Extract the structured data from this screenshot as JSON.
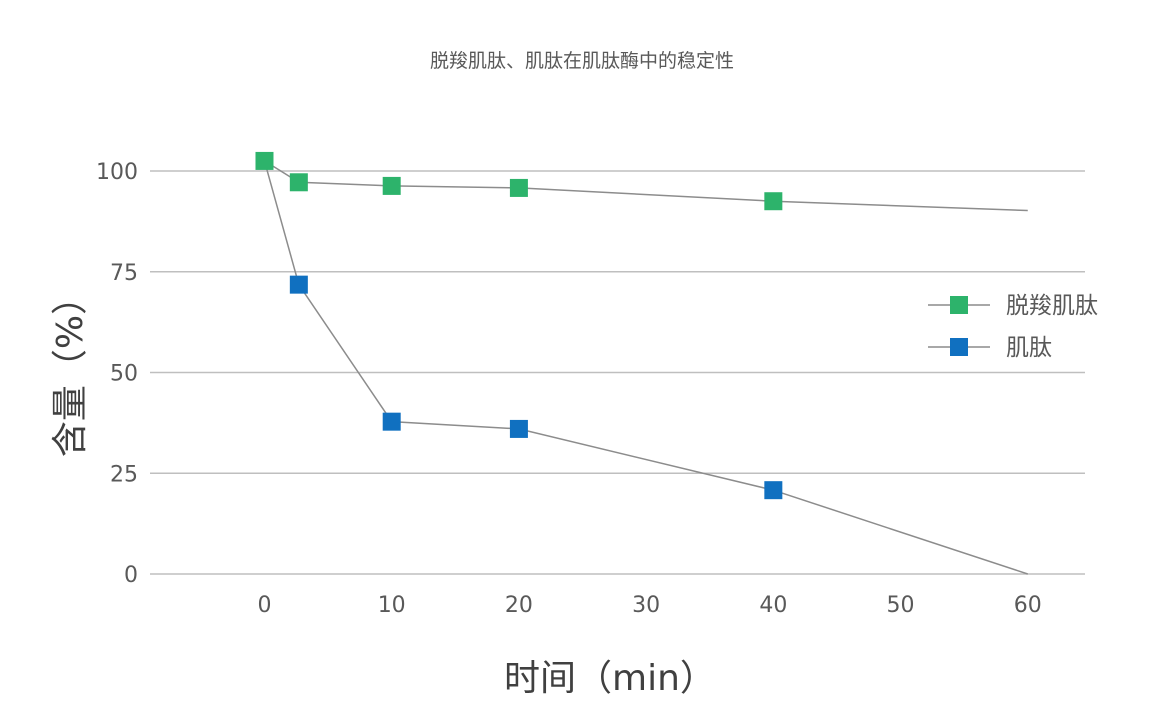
{
  "chart_data": {
    "type": "line",
    "title": "脱羧肌肽、肌肽在肌肽酶中的稳定性",
    "xlabel": "时间（min）",
    "ylabel": "含量（%）",
    "xlim": [
      -9,
      64.5
    ],
    "ylim": [
      0,
      100
    ],
    "x_ticks": [
      "0",
      "10",
      "20",
      "30",
      "40",
      "50",
      "60"
    ],
    "y_ticks": [
      "0",
      "25",
      "50",
      "75",
      "100"
    ],
    "grid": true,
    "legend_position": "right",
    "series": [
      {
        "name": "脱羧肌肽",
        "color": "#2db36b",
        "points": [
          {
            "x": 0,
            "y": 102.5,
            "marker": true
          },
          {
            "x": 2.7,
            "y": 97.2,
            "marker": true
          },
          {
            "x": 10,
            "y": 96.3,
            "marker": true
          },
          {
            "x": 20,
            "y": 95.8,
            "marker": true
          },
          {
            "x": 40,
            "y": 92.5,
            "marker": true
          },
          {
            "x": 60,
            "y": 90.2,
            "marker": false
          }
        ]
      },
      {
        "name": "肌肽",
        "color": "#1070c0",
        "points": [
          {
            "x": 0,
            "y": 102.5,
            "marker": false
          },
          {
            "x": 2.7,
            "y": 71.8,
            "marker": true
          },
          {
            "x": 10,
            "y": 37.8,
            "marker": true
          },
          {
            "x": 20,
            "y": 36.0,
            "marker": true
          },
          {
            "x": 40,
            "y": 20.8,
            "marker": true
          },
          {
            "x": 60,
            "y": 0,
            "marker": false
          }
        ]
      }
    ]
  }
}
